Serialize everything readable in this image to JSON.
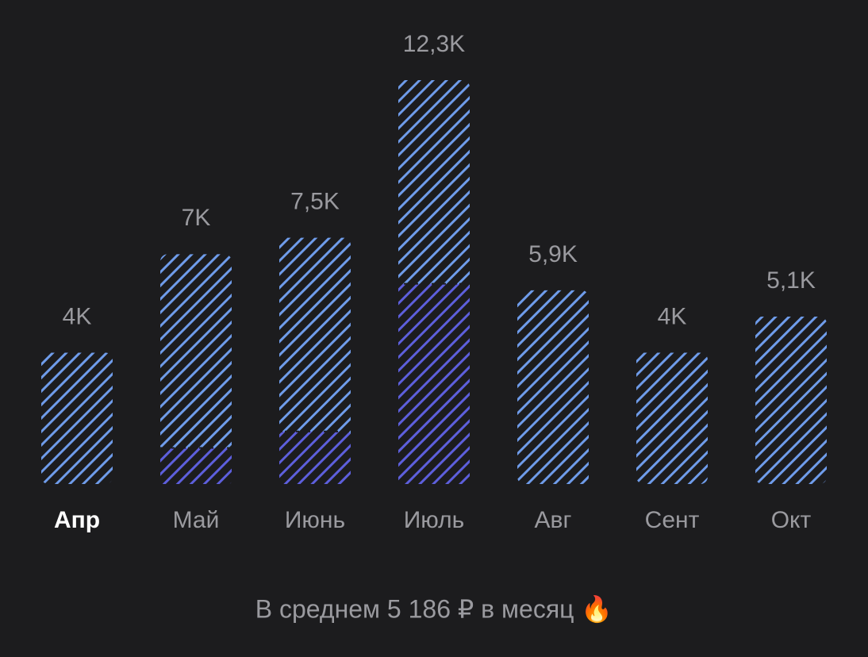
{
  "chart_data": {
    "type": "bar",
    "categories": [
      "Апр",
      "Май",
      "Июнь",
      "Июль",
      "Авг",
      "Сент",
      "Окт"
    ],
    "selected": 0,
    "series": [
      {
        "color": "#6f9cea",
        "values": [
          4,
          7,
          7.5,
          12.3,
          5.9,
          4,
          5.1
        ],
        "value_labels": [
          "4K",
          "7K",
          "7,5K",
          "12,3K",
          "5,9K",
          "4K",
          "5,1K"
        ]
      },
      {
        "color": "#5d5fdc",
        "values": [
          null,
          1.1,
          1.6,
          6.1,
          null,
          null,
          null
        ]
      }
    ],
    "footer": "В среднем 5 186 ₽ в месяц 🔥"
  }
}
